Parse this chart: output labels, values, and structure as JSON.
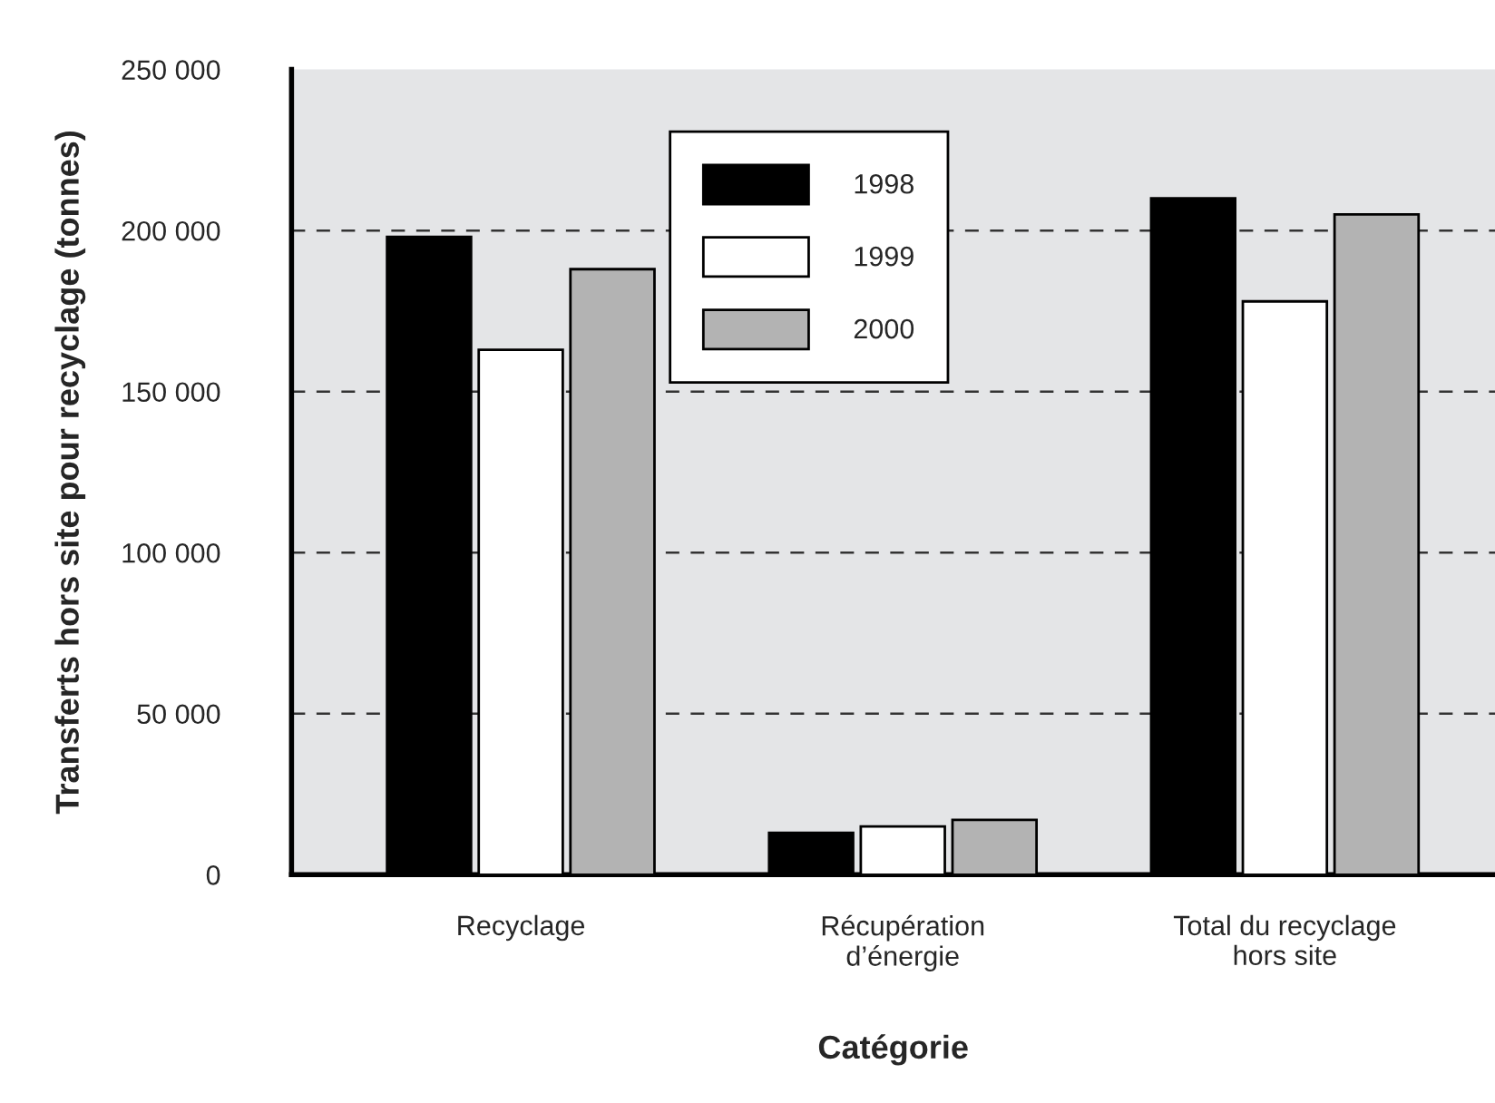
{
  "chart_data": {
    "type": "bar",
    "xlabel": "Catégorie",
    "ylabel": "Transferts hors site pour recyclage (tonnes)",
    "categories": [
      "Recyclage",
      "Récupération\nd’énergie",
      "Total du recyclage\nhors site"
    ],
    "series": [
      {
        "name": "1998",
        "color": "#000000",
        "values": [
          198000,
          13000,
          210000
        ]
      },
      {
        "name": "1999",
        "color": "#ffffff",
        "values": [
          163000,
          15000,
          178000
        ]
      },
      {
        "name": "2000",
        "color": "#b3b3b3",
        "values": [
          188000,
          17000,
          205000
        ]
      }
    ],
    "ylim": [
      0,
      250000
    ],
    "yticks": [
      {
        "value": 0,
        "label": "0"
      },
      {
        "value": 50000,
        "label": "50 000"
      },
      {
        "value": 100000,
        "label": "100 000"
      },
      {
        "value": 150000,
        "label": "150 000"
      },
      {
        "value": 200000,
        "label": "200 000"
      },
      {
        "value": 250000,
        "label": "250 000"
      }
    ],
    "grid": "y",
    "legend": "top"
  }
}
